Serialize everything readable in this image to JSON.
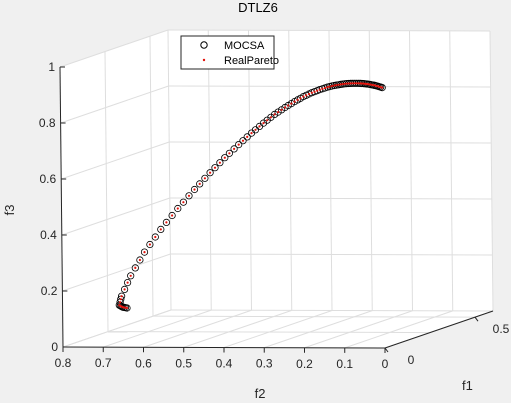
{
  "chart_data": {
    "type": "scatter",
    "title": "DTLZ6",
    "xlabel": "f1",
    "ylabel": "f2",
    "zlabel": "f3",
    "projection": "3d",
    "xlim": [
      0,
      0.6
    ],
    "ylim": [
      0,
      0.8
    ],
    "zlim": [
      0,
      1
    ],
    "x_ticks": [
      "0",
      "0.5"
    ],
    "y_ticks": [
      "0.8",
      "0.7",
      "0.6",
      "0.5",
      "0.4",
      "0.3",
      "0.2",
      "0.1",
      "0"
    ],
    "z_ticks": [
      "0",
      "0.2",
      "0.4",
      "0.6",
      "0.8",
      "1"
    ],
    "grid": true,
    "legend": "top-left",
    "series": [
      {
        "name": "MOCSA",
        "marker": "circle-open",
        "color": "#000000",
        "x": [
          0.0,
          0.0,
          0.0,
          0.0,
          0.0,
          0.0,
          0.0,
          0.0,
          0.0,
          0.0,
          0.0,
          0.0,
          0.0,
          0.0,
          0.0,
          0.0,
          0.0,
          0.0,
          0.0,
          0.0,
          0.0,
          0.0,
          0.0,
          0.0,
          0.0,
          0.0,
          0.0,
          0.0,
          0.0,
          0.0,
          0.0
        ],
        "y": [
          0.0,
          0.011,
          0.022,
          0.034,
          0.046,
          0.059,
          0.073,
          0.088,
          0.103,
          0.119,
          0.136,
          0.155,
          0.175,
          0.196,
          0.218,
          0.242,
          0.268,
          0.296,
          0.326,
          0.358,
          0.393,
          0.43,
          0.469,
          0.511,
          0.554,
          0.595,
          0.63,
          0.653,
          0.659,
          0.651,
          0.64
        ],
        "z": [
          0.93,
          0.935,
          0.939,
          0.942,
          0.944,
          0.945,
          0.945,
          0.944,
          0.941,
          0.937,
          0.931,
          0.922,
          0.911,
          0.897,
          0.879,
          0.858,
          0.833,
          0.802,
          0.766,
          0.725,
          0.678,
          0.624,
          0.564,
          0.496,
          0.421,
          0.34,
          0.255,
          0.182,
          0.15,
          0.143,
          0.14
        ]
      },
      {
        "name": "RealPareto",
        "marker": "dot",
        "color": "#e3120b",
        "x": [
          0.0,
          0.0,
          0.0,
          0.0,
          0.0,
          0.0,
          0.0,
          0.0,
          0.0,
          0.0,
          0.0,
          0.0,
          0.0,
          0.0,
          0.0,
          0.0,
          0.0,
          0.0,
          0.0,
          0.0,
          0.0,
          0.0,
          0.0,
          0.0,
          0.0,
          0.0,
          0.0,
          0.0,
          0.0,
          0.0,
          0.0
        ],
        "y": [
          0.0,
          0.011,
          0.022,
          0.034,
          0.046,
          0.059,
          0.073,
          0.088,
          0.103,
          0.119,
          0.136,
          0.155,
          0.175,
          0.196,
          0.218,
          0.242,
          0.268,
          0.296,
          0.326,
          0.358,
          0.393,
          0.43,
          0.469,
          0.511,
          0.554,
          0.595,
          0.63,
          0.653,
          0.659,
          0.651,
          0.64
        ],
        "z": [
          0.93,
          0.935,
          0.939,
          0.942,
          0.944,
          0.945,
          0.945,
          0.944,
          0.941,
          0.937,
          0.931,
          0.922,
          0.911,
          0.897,
          0.879,
          0.858,
          0.833,
          0.802,
          0.766,
          0.725,
          0.678,
          0.624,
          0.564,
          0.496,
          0.421,
          0.34,
          0.255,
          0.182,
          0.15,
          0.143,
          0.14
        ]
      }
    ]
  },
  "colors": {
    "figure_background": "#f0f0f0",
    "plot_background": "#ffffff",
    "grid": "#dedede",
    "axis": "#262626",
    "marker_circle": "#000000",
    "marker_dot": "#e3120b"
  }
}
